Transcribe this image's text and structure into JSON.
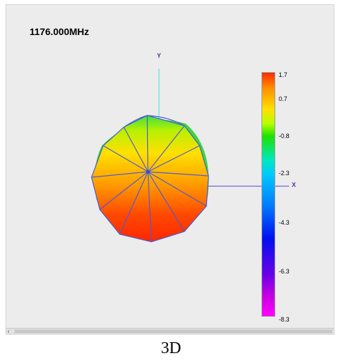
{
  "frequency_label": "1176.000MHz",
  "axes": {
    "y_label": "Y",
    "x_label": "X"
  },
  "colorbar": {
    "ticks": [
      "1.7",
      "0.7",
      "-0.8",
      "-2.3",
      "-4.3",
      "-6.3",
      "-8.3"
    ],
    "max": 1.7,
    "min": -8.3
  },
  "colors": {
    "axis_y": "#40e0d0",
    "axis_x": "#4b3cd4",
    "mesh": "#4a5ad8"
  },
  "caption": "3D"
}
